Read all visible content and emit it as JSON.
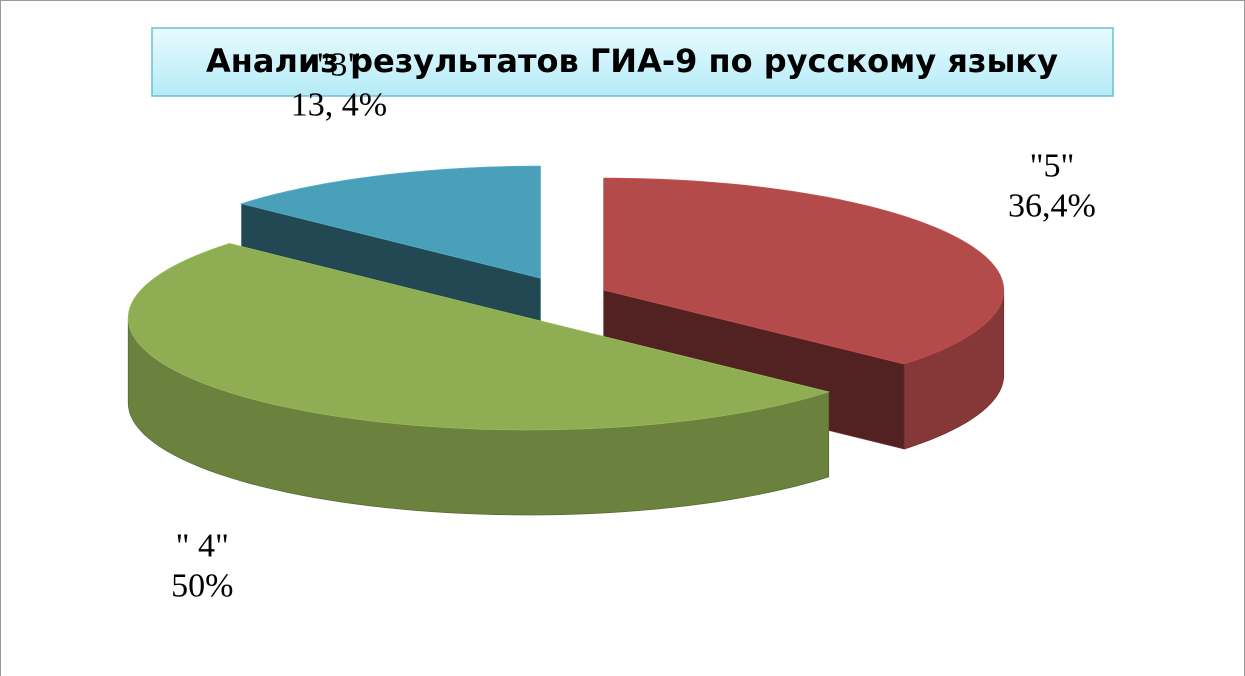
{
  "chart_data": {
    "type": "pie",
    "title": "Анализ результатов ГИА-9 по русскому языку",
    "categories": [
      "\"5\"",
      "\" 4\"",
      "\"3\""
    ],
    "values": [
      36.4,
      50,
      13.4
    ],
    "value_labels": [
      "36,4%",
      "50%",
      "13, 4%"
    ],
    "colors": [
      "#b34b4a",
      "#8fad52",
      "#4aa0b8"
    ]
  }
}
